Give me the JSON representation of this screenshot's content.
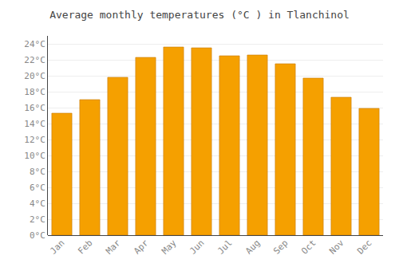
{
  "chart_data": {
    "type": "bar",
    "title": "Average monthly temperatures (°C ) in Tlanchinol",
    "categories": [
      "Jan",
      "Feb",
      "Mar",
      "Apr",
      "May",
      "Jun",
      "Jul",
      "Aug",
      "Sep",
      "Oct",
      "Nov",
      "Dec"
    ],
    "values": [
      15.3,
      17.0,
      19.8,
      22.3,
      23.6,
      23.5,
      22.5,
      22.6,
      21.5,
      19.7,
      17.3,
      15.9
    ],
    "color": "#F5A000",
    "ylim": [
      0,
      25
    ],
    "yticks": [
      {
        "value": 0,
        "label": "0°C"
      },
      {
        "value": 2,
        "label": "2°C"
      },
      {
        "value": 4,
        "label": "4°C"
      },
      {
        "value": 6,
        "label": "6°C"
      },
      {
        "value": 8,
        "label": "8°C"
      },
      {
        "value": 10,
        "label": "10°C"
      },
      {
        "value": 12,
        "label": "12°C"
      },
      {
        "value": 14,
        "label": "14°C"
      },
      {
        "value": 16,
        "label": "16°C"
      },
      {
        "value": 18,
        "label": "18°C"
      },
      {
        "value": 20,
        "label": "20°C"
      },
      {
        "value": 22,
        "label": "22°C"
      },
      {
        "value": 24,
        "label": "24°C"
      }
    ],
    "grid": true
  }
}
